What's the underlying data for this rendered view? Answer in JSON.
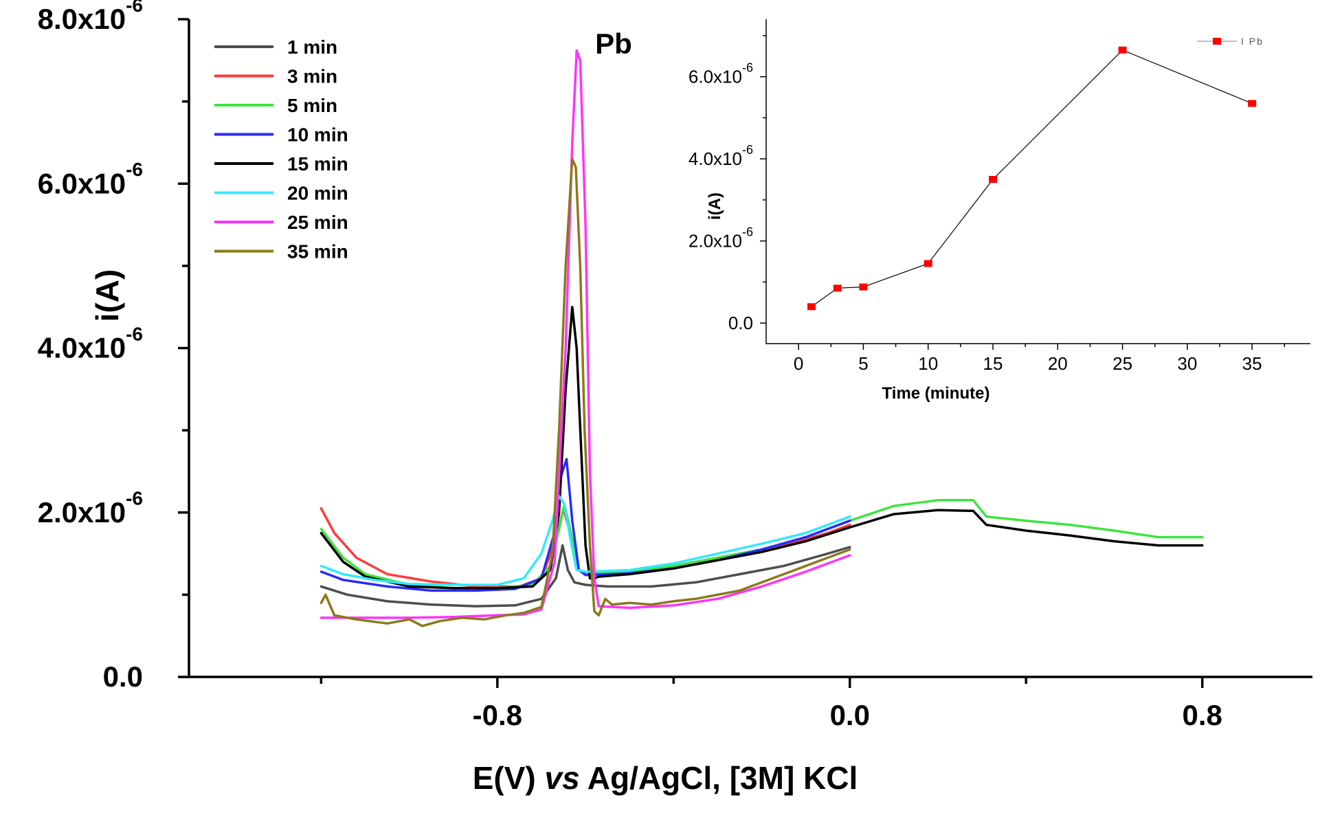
{
  "chart_data": [
    {
      "type": "line",
      "peak_annotation": "Pb",
      "xlabel_parts": [
        "E(V) ",
        "vs",
        " Ag/AgCl, [3M] KCl"
      ],
      "ylabel": "i(A)",
      "xlim": [
        -1.5,
        1.05
      ],
      "ylim": [
        0,
        8e-06
      ],
      "x_tick_values": [
        -0.8,
        0.0,
        0.8
      ],
      "x_tick_labels": [
        "-0.8",
        "0.0",
        "0.8"
      ],
      "x_minor_ticks": [
        -1.2,
        -0.4,
        0.4
      ],
      "y_tick_values": [
        0,
        2e-06,
        4e-06,
        6e-06,
        8e-06
      ],
      "y_tick_labels": [
        {
          "mantissa": "0.0",
          "exp": ""
        },
        {
          "mantissa": "2.0x10",
          "exp": "-6"
        },
        {
          "mantissa": "4.0x10",
          "exp": "-6"
        },
        {
          "mantissa": "6.0x10",
          "exp": "-6"
        },
        {
          "mantissa": "8.0x10",
          "exp": "-6"
        }
      ],
      "y_minor_ticks": [
        1e-06,
        3e-06,
        5e-06,
        7e-06
      ],
      "legend_position": "top-left",
      "series": [
        {
          "name": "1 min",
          "color": "#4d4d4d",
          "x": [
            -1.2,
            -1.14,
            -1.05,
            -0.95,
            -0.85,
            -0.76,
            -0.7,
            -0.667,
            -0.652,
            -0.64,
            -0.625,
            -0.6,
            -0.55,
            -0.45,
            -0.35,
            -0.25,
            -0.15,
            -0.05,
            0.0
          ],
          "y": [
            1.1e-06,
            1e-06,
            9.2e-07,
            8.8e-07,
            8.6e-07,
            8.7e-07,
            9.5e-07,
            1.2e-06,
            1.6e-06,
            1.3e-06,
            1.15e-06,
            1.12e-06,
            1.1e-06,
            1.1e-06,
            1.15e-06,
            1.25e-06,
            1.35e-06,
            1.5e-06,
            1.58e-06
          ]
        },
        {
          "name": "3 min",
          "color": "#ff3b3b",
          "x": [
            -1.2,
            -1.17,
            -1.12,
            -1.05,
            -0.95,
            -0.85,
            -0.75,
            -0.7,
            -0.665,
            -0.65,
            -0.635,
            -0.615,
            -0.6,
            -0.55,
            -0.45,
            -0.35,
            -0.25,
            -0.15,
            -0.05,
            0.0
          ],
          "y": [
            2.05e-06,
            1.75e-06,
            1.45e-06,
            1.25e-06,
            1.16e-06,
            1.1e-06,
            1.1e-06,
            1.2e-06,
            1.7e-06,
            2.05e-06,
            1.75e-06,
            1.3e-06,
            1.25e-06,
            1.25e-06,
            1.3e-06,
            1.4e-06,
            1.5e-06,
            1.6e-06,
            1.75e-06,
            1.85e-06
          ]
        },
        {
          "name": "5 min",
          "color": "#3fe33f",
          "x": [
            -1.2,
            -1.15,
            -1.1,
            -1.0,
            -0.9,
            -0.8,
            -0.72,
            -0.68,
            -0.66,
            -0.648,
            -0.635,
            -0.615,
            -0.6,
            -0.5,
            -0.4,
            -0.3,
            -0.2,
            -0.1,
            0.0,
            0.1,
            0.2,
            0.28,
            0.31,
            0.4,
            0.5,
            0.6,
            0.7,
            0.8
          ],
          "y": [
            1.8e-06,
            1.45e-06,
            1.25e-06,
            1.12e-06,
            1.08e-06,
            1.08e-06,
            1.12e-06,
            1.35e-06,
            1.8e-06,
            2.1e-06,
            1.8e-06,
            1.3e-06,
            1.26e-06,
            1.28e-06,
            1.35e-06,
            1.45e-06,
            1.55e-06,
            1.7e-06,
            1.9e-06,
            2.08e-06,
            2.15e-06,
            2.15e-06,
            1.95e-06,
            1.9e-06,
            1.85e-06,
            1.78e-06,
            1.7e-06,
            1.7e-06
          ]
        },
        {
          "name": "10 min",
          "color": "#2a2aff",
          "x": [
            -1.2,
            -1.15,
            -1.05,
            -0.95,
            -0.85,
            -0.76,
            -0.7,
            -0.668,
            -0.655,
            -0.643,
            -0.63,
            -0.615,
            -0.6,
            -0.5,
            -0.4,
            -0.3,
            -0.2,
            -0.1,
            0.0
          ],
          "y": [
            1.28e-06,
            1.18e-06,
            1.1e-06,
            1.05e-06,
            1.05e-06,
            1.07e-06,
            1.2e-06,
            1.8e-06,
            2.45e-06,
            2.65e-06,
            1.9e-06,
            1.3e-06,
            1.24e-06,
            1.26e-06,
            1.32e-06,
            1.42e-06,
            1.55e-06,
            1.7e-06,
            1.9e-06
          ]
        },
        {
          "name": "15 min",
          "color": "#000000",
          "x": [
            -1.2,
            -1.15,
            -1.1,
            -1.0,
            -0.9,
            -0.8,
            -0.72,
            -0.68,
            -0.66,
            -0.645,
            -0.63,
            -0.62,
            -0.61,
            -0.6,
            -0.59,
            -0.58,
            -0.57,
            -0.5,
            -0.4,
            -0.3,
            -0.2,
            -0.1,
            0.0,
            0.1,
            0.2,
            0.28,
            0.31,
            0.4,
            0.5,
            0.6,
            0.7,
            0.8
          ],
          "y": [
            1.75e-06,
            1.4e-06,
            1.22e-06,
            1.1e-06,
            1.08e-06,
            1.08e-06,
            1.1e-06,
            1.3e-06,
            2e-06,
            3.5e-06,
            4.5e-06,
            4e-06,
            2.8e-06,
            1.6e-06,
            1.2e-06,
            1.2e-06,
            1.22e-06,
            1.25e-06,
            1.32e-06,
            1.42e-06,
            1.52e-06,
            1.65e-06,
            1.82e-06,
            1.98e-06,
            2.03e-06,
            2.02e-06,
            1.85e-06,
            1.78e-06,
            1.72e-06,
            1.65e-06,
            1.6e-06,
            1.6e-06
          ]
        },
        {
          "name": "20 min",
          "color": "#33e8ff",
          "x": [
            -1.2,
            -1.15,
            -1.08,
            -1.0,
            -0.9,
            -0.8,
            -0.74,
            -0.7,
            -0.675,
            -0.66,
            -0.648,
            -0.635,
            -0.62,
            -0.6,
            -0.5,
            -0.4,
            -0.3,
            -0.2,
            -0.1,
            0.0
          ],
          "y": [
            1.35e-06,
            1.25e-06,
            1.18e-06,
            1.13e-06,
            1.12e-06,
            1.12e-06,
            1.2e-06,
            1.5e-06,
            1.9e-06,
            2.2e-06,
            2.1e-06,
            1.7e-06,
            1.3e-06,
            1.28e-06,
            1.3e-06,
            1.38e-06,
            1.5e-06,
            1.62e-06,
            1.75e-06,
            1.95e-06
          ]
        },
        {
          "name": "25 min",
          "color": "#ff33ff",
          "x": [
            -1.2,
            -1.1,
            -1.0,
            -0.9,
            -0.8,
            -0.74,
            -0.7,
            -0.67,
            -0.645,
            -0.63,
            -0.62,
            -0.612,
            -0.6,
            -0.59,
            -0.58,
            -0.57,
            -0.5,
            -0.4,
            -0.3,
            -0.2,
            -0.1,
            0.0
          ],
          "y": [
            7.2e-07,
            7.2e-07,
            7.2e-07,
            7.3e-07,
            7.5e-07,
            7.6e-07,
            8.2e-07,
            1.4e-06,
            4e-06,
            6.5e-06,
            7.62e-06,
            7.5e-06,
            5.5e-06,
            2.5e-06,
            1.2e-06,
            8.6e-07,
            8.4e-07,
            8.7e-07,
            9.5e-07,
            1.1e-06,
            1.28e-06,
            1.48e-06
          ]
        },
        {
          "name": "35 min",
          "color": "#8a7a1a",
          "x": [
            -1.2,
            -1.19,
            -1.17,
            -1.12,
            -1.05,
            -1.0,
            -0.97,
            -0.93,
            -0.88,
            -0.83,
            -0.78,
            -0.74,
            -0.7,
            -0.675,
            -0.66,
            -0.645,
            -0.63,
            -0.622,
            -0.612,
            -0.602,
            -0.59,
            -0.58,
            -0.57,
            -0.555,
            -0.54,
            -0.5,
            -0.45,
            -0.4,
            -0.35,
            -0.3,
            -0.25,
            -0.2,
            -0.15,
            -0.1,
            -0.05,
            0.0
          ],
          "y": [
            9e-07,
            1e-06,
            7.5e-07,
            7e-07,
            6.5e-07,
            7e-07,
            6.2e-07,
            6.8e-07,
            7.2e-07,
            7e-07,
            7.5e-07,
            7.8e-07,
            8.5e-07,
            1.5e-06,
            3e-06,
            5e-06,
            6.3e-06,
            6.2e-06,
            5e-06,
            3e-06,
            1.6e-06,
            8e-07,
            7.5e-07,
            9.5e-07,
            8.8e-07,
            9e-07,
            8.8e-07,
            9.2e-07,
            9.5e-07,
            1e-06,
            1.05e-06,
            1.15e-06,
            1.25e-06,
            1.35e-06,
            1.45e-06,
            1.55e-06
          ]
        }
      ]
    },
    {
      "type": "scatter",
      "xlabel": "Time (minute)",
      "ylabel": "i(A)",
      "xlim": [
        -2.5,
        39.5
      ],
      "ylim": [
        -5e-07,
        7.4e-06
      ],
      "x_tick_values": [
        0,
        5,
        10,
        15,
        20,
        25,
        30,
        35
      ],
      "x_tick_labels": [
        "0",
        "5",
        "10",
        "15",
        "20",
        "25",
        "30",
        "35"
      ],
      "x_minor_ticks": [
        2.5,
        7.5,
        12.5,
        17.5,
        22.5,
        27.5,
        32.5,
        37.5
      ],
      "y_tick_values": [
        0,
        2e-06,
        4e-06,
        6e-06
      ],
      "y_tick_labels": [
        {
          "mantissa": "0.0",
          "exp": ""
        },
        {
          "mantissa": "2.0x10",
          "exp": "-6"
        },
        {
          "mantissa": "4.0x10",
          "exp": "-6"
        },
        {
          "mantissa": "6.0x10",
          "exp": "-6"
        }
      ],
      "y_minor_ticks": [
        1e-06,
        3e-06,
        5e-06,
        7e-06
      ],
      "legend_position": "top-right",
      "series": [
        {
          "name": "I Pb",
          "color": "#ff0000",
          "line_color": "#000000",
          "x": [
            1,
            3,
            5,
            10,
            15,
            25,
            35
          ],
          "y": [
            4e-07,
            8.5e-07,
            8.8e-07,
            1.45e-06,
            3.5e-06,
            6.65e-06,
            5.35e-06
          ]
        }
      ]
    }
  ]
}
